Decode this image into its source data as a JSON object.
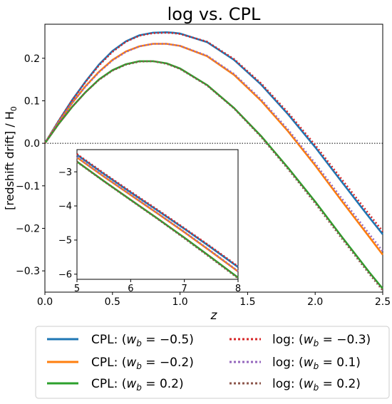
{
  "chart_data": [
    {
      "type": "line",
      "title": "log  vs. CPL",
      "xlabel": "z",
      "ylabel": "[redshift drift] / H",
      "ylabel_sub": "0",
      "xlim": [
        0,
        2.5
      ],
      "ylim": [
        -0.35,
        0.28
      ],
      "xticks": [
        0,
        0.5,
        1.0,
        1.5,
        2.0,
        2.5
      ],
      "xtick_labels": [
        "0.0",
        "0.5",
        "1.0",
        "1.5",
        "2.0",
        "2.5"
      ],
      "yticks": [
        0.2,
        0.1,
        0.0,
        -0.1,
        -0.2,
        -0.3
      ],
      "ytick_labels": [
        "0.2",
        "0.1",
        "0.0",
        "−0.1",
        "−0.2",
        "−0.3"
      ],
      "reference_line": {
        "y": 0,
        "style": "dotted"
      },
      "series": [
        {
          "name": "CPL: (w_b = −0.5)",
          "color": "#1f77b4",
          "style": "solid",
          "x": [
            0,
            0.1,
            0.2,
            0.3,
            0.4,
            0.5,
            0.6,
            0.7,
            0.8,
            0.9,
            0.95,
            1.0,
            1.2,
            1.4,
            1.6,
            1.8,
            2.0,
            2.2,
            2.4,
            2.5
          ],
          "y": [
            0,
            0.052,
            0.101,
            0.145,
            0.185,
            0.217,
            0.24,
            0.254,
            0.26,
            0.261,
            0.26,
            0.258,
            0.238,
            0.196,
            0.138,
            0.068,
            -0.009,
            -0.092,
            -0.174,
            -0.214
          ]
        },
        {
          "name": "CPL: (w_b = −0.2)",
          "color": "#ff7f0e",
          "style": "solid",
          "x": [
            0,
            0.1,
            0.2,
            0.3,
            0.4,
            0.5,
            0.6,
            0.7,
            0.8,
            0.9,
            1.0,
            1.2,
            1.4,
            1.6,
            1.8,
            2.0,
            2.2,
            2.4,
            2.5
          ],
          "y": [
            0,
            0.049,
            0.094,
            0.134,
            0.168,
            0.196,
            0.216,
            0.228,
            0.234,
            0.234,
            0.229,
            0.205,
            0.161,
            0.1,
            0.028,
            -0.052,
            -0.137,
            -0.22,
            -0.262
          ]
        },
        {
          "name": "CPL: (w_b = 0.2)",
          "color": "#2ca02c",
          "style": "solid",
          "x": [
            0,
            0.1,
            0.2,
            0.3,
            0.4,
            0.5,
            0.6,
            0.7,
            0.8,
            0.9,
            1.0,
            1.2,
            1.4,
            1.6,
            1.8,
            2.0,
            2.2,
            2.4,
            2.5
          ],
          "y": [
            0,
            0.045,
            0.085,
            0.12,
            0.15,
            0.172,
            0.186,
            0.193,
            0.193,
            0.188,
            0.176,
            0.137,
            0.083,
            0.017,
            -0.058,
            -0.137,
            -0.221,
            -0.303,
            -0.342
          ]
        },
        {
          "name": "log: (w_b = −0.3)",
          "color": "#d62728",
          "style": "dotted",
          "x": [
            0,
            0.1,
            0.2,
            0.3,
            0.4,
            0.5,
            0.6,
            0.7,
            0.8,
            0.9,
            0.95,
            1.0,
            1.2,
            1.4,
            1.6,
            1.8,
            2.0,
            2.2,
            2.4,
            2.5
          ],
          "y": [
            0,
            0.052,
            0.1,
            0.144,
            0.183,
            0.215,
            0.239,
            0.253,
            0.259,
            0.26,
            0.259,
            0.257,
            0.239,
            0.198,
            0.141,
            0.072,
            -0.004,
            -0.086,
            -0.167,
            -0.207
          ]
        },
        {
          "name": "log: (w_b = 0.1)",
          "color": "#9467bd",
          "style": "dotted",
          "x": [
            0,
            0.1,
            0.2,
            0.3,
            0.4,
            0.5,
            0.6,
            0.7,
            0.8,
            0.9,
            1.0,
            1.2,
            1.4,
            1.6,
            1.8,
            2.0,
            2.2,
            2.4,
            2.5
          ],
          "y": [
            0,
            0.049,
            0.094,
            0.133,
            0.167,
            0.195,
            0.215,
            0.228,
            0.234,
            0.234,
            0.229,
            0.206,
            0.163,
            0.103,
            0.032,
            -0.047,
            -0.131,
            -0.213,
            -0.254
          ]
        },
        {
          "name": "log: (w_b = 0.2)",
          "color": "#8c564b",
          "style": "dotted",
          "x": [
            0,
            0.1,
            0.2,
            0.3,
            0.4,
            0.5,
            0.6,
            0.7,
            0.8,
            0.9,
            1.0,
            1.2,
            1.4,
            1.6,
            1.8,
            2.0,
            2.2,
            2.4,
            2.5
          ],
          "y": [
            0,
            0.045,
            0.085,
            0.12,
            0.149,
            0.171,
            0.185,
            0.192,
            0.193,
            0.187,
            0.175,
            0.136,
            0.082,
            0.015,
            -0.061,
            -0.141,
            -0.225,
            -0.307,
            -0.346
          ]
        }
      ],
      "legend": {
        "placement": "below",
        "columns": 2,
        "entries": [
          {
            "prefix": "CPL: (",
            "var": "w",
            "sub": "b",
            "rest": " = −0.5)",
            "color": "#1f77b4",
            "style": "solid"
          },
          {
            "prefix": "CPL: (",
            "var": "w",
            "sub": "b",
            "rest": " = −0.2)",
            "color": "#ff7f0e",
            "style": "solid"
          },
          {
            "prefix": "CPL: (",
            "var": "w",
            "sub": "b",
            "rest": " = 0.2)",
            "color": "#2ca02c",
            "style": "solid"
          },
          {
            "prefix": "log: (",
            "var": "w",
            "sub": "b",
            "rest": " = −0.3)",
            "color": "#d62728",
            "style": "dotted"
          },
          {
            "prefix": "log: (",
            "var": "w",
            "sub": "b",
            "rest": " = 0.1)",
            "color": "#9467bd",
            "style": "dotted"
          },
          {
            "prefix": "log: (",
            "var": "w",
            "sub": "b",
            "rest": " = 0.2)",
            "color": "#8c564b",
            "style": "dotted"
          }
        ]
      }
    },
    {
      "type": "line",
      "role": "inset",
      "xlim": [
        5,
        8
      ],
      "ylim": [
        -6.15,
        -2.35
      ],
      "xticks": [
        5,
        6,
        7,
        8
      ],
      "xtick_labels": [
        "5",
        "6",
        "7",
        "8"
      ],
      "yticks": [
        -3,
        -4,
        -5,
        -6
      ],
      "ytick_labels": [
        "−3",
        "−4",
        "−5",
        "−6"
      ],
      "series": [
        {
          "color": "#1f77b4",
          "style": "solid",
          "x": [
            5,
            5.5,
            6,
            6.5,
            7,
            7.5,
            8
          ],
          "y": [
            -2.5,
            -3.06,
            -3.6,
            -4.13,
            -4.67,
            -5.22,
            -5.79
          ]
        },
        {
          "color": "#ff7f0e",
          "style": "solid",
          "x": [
            5,
            5.5,
            6,
            6.5,
            7,
            7.5,
            8
          ],
          "y": [
            -2.58,
            -3.14,
            -3.68,
            -4.22,
            -4.77,
            -5.34,
            -5.92
          ]
        },
        {
          "color": "#2ca02c",
          "style": "solid",
          "x": [
            5,
            5.5,
            6,
            6.5,
            7,
            7.5,
            8
          ],
          "y": [
            -2.7,
            -3.27,
            -3.82,
            -4.37,
            -4.93,
            -5.51,
            -6.1
          ]
        },
        {
          "color": "#d62728",
          "style": "dotted",
          "x": [
            5,
            5.5,
            6,
            6.5,
            7,
            7.5,
            8
          ],
          "y": [
            -2.48,
            -3.04,
            -3.58,
            -4.11,
            -4.65,
            -5.2,
            -5.77
          ]
        },
        {
          "color": "#9467bd",
          "style": "dotted",
          "x": [
            5,
            5.5,
            6,
            6.5,
            7,
            7.5,
            8
          ],
          "y": [
            -2.57,
            -3.13,
            -3.67,
            -4.21,
            -4.76,
            -5.33,
            -5.91
          ]
        },
        {
          "color": "#8c564b",
          "style": "dotted",
          "x": [
            5,
            5.5,
            6,
            6.5,
            7,
            7.5,
            8
          ],
          "y": [
            -2.71,
            -3.28,
            -3.83,
            -4.38,
            -4.95,
            -5.53,
            -6.12
          ]
        }
      ]
    }
  ]
}
